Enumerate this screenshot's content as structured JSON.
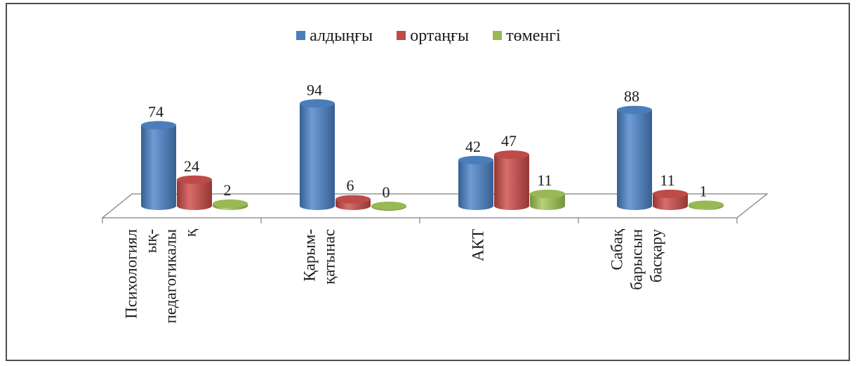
{
  "chart_data": {
    "type": "bar",
    "categories": [
      [
        "Психологиял",
        "ық-",
        "педагогикалы",
        "қ"
      ],
      [
        "Қарым-",
        "қатынас"
      ],
      [
        "АКТ"
      ],
      [
        "Сабақ",
        "барысын",
        "басқару"
      ]
    ],
    "series": [
      {
        "name": "алдыңғы",
        "values": [
          74,
          94,
          42,
          88
        ]
      },
      {
        "name": "ортаңғы",
        "values": [
          24,
          6,
          47,
          11
        ]
      },
      {
        "name": "төменгі",
        "values": [
          2,
          0,
          11,
          1
        ]
      }
    ],
    "data_labels": true,
    "legend_position": "top",
    "colors": {
      "series": [
        "#4a7ebb",
        "#be4b48",
        "#98b954"
      ],
      "series_light": [
        "#6f9bd6",
        "#d86e6b",
        "#b5d27a"
      ],
      "series_dark": [
        "#365f91",
        "#943634",
        "#76923c"
      ],
      "floor": "#ffffff",
      "axis": "#7f7f7f"
    },
    "ylim": [
      0,
      100
    ]
  }
}
